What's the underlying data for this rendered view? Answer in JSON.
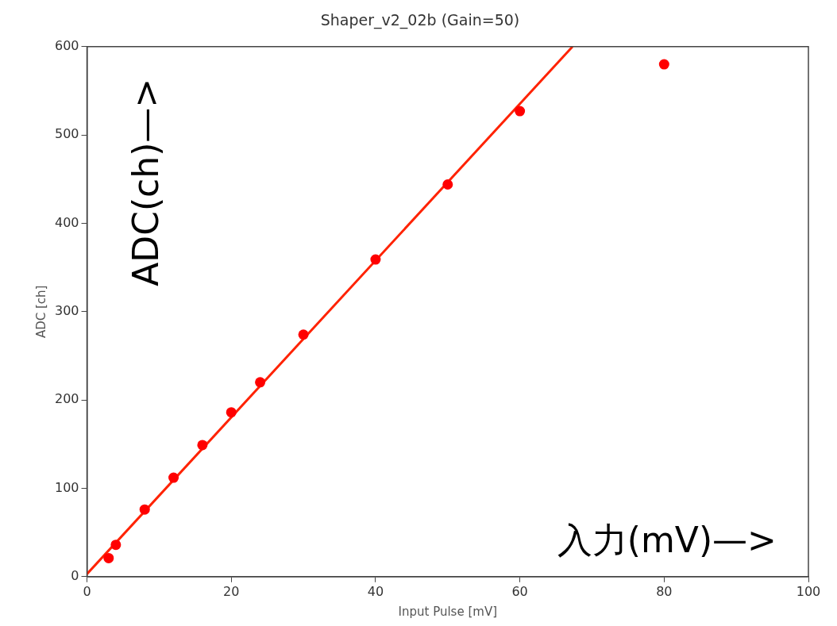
{
  "chart_data": {
    "type": "scatter",
    "title": "Shaper_v2_02b (Gain=50)",
    "xlabel": "Input Pulse [mV]",
    "ylabel": "ADC [ch]",
    "xlim": [
      0,
      100
    ],
    "xticks": [
      0,
      20,
      40,
      60,
      80,
      100
    ],
    "ylim": [
      0,
      600
    ],
    "yticks": [
      0,
      100,
      200,
      300,
      400,
      500,
      600
    ],
    "series": [
      {
        "color": "#ff0000",
        "marker": "circle",
        "x": [
          3,
          4,
          8,
          12,
          16,
          20,
          24,
          30,
          40,
          50,
          60,
          80
        ],
        "values": [
          21,
          36,
          76,
          112,
          149,
          186,
          220,
          274,
          359,
          444,
          527,
          580
        ]
      },
      {
        "type": "line",
        "color": "#ff2200",
        "marker": "none",
        "line_style": "solid",
        "x": [
          0,
          67.3
        ],
        "values": [
          3,
          600
        ]
      }
    ],
    "grid": false,
    "legend": false,
    "annotations": [
      "ADC(ch)—>",
      "入力(mV)—>"
    ]
  }
}
